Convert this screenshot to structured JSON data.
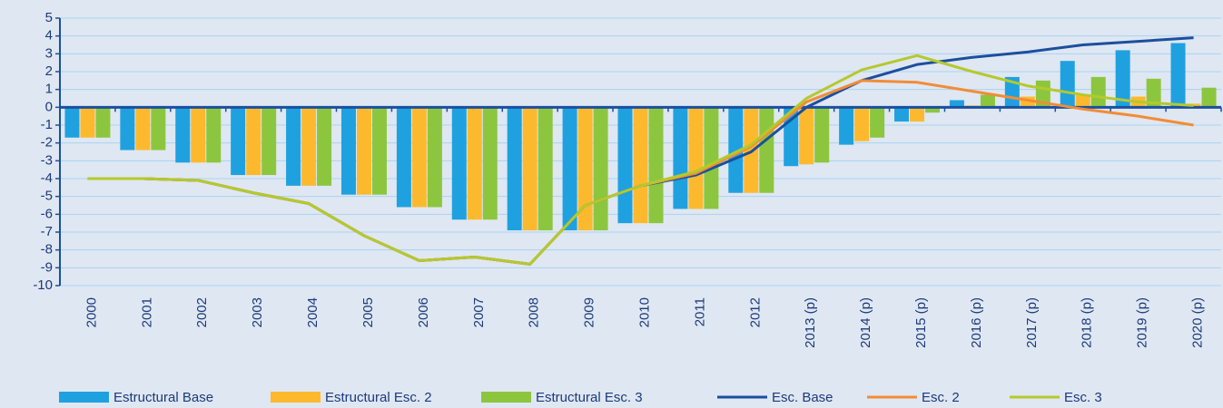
{
  "chart_data": {
    "type": "combo",
    "categories": [
      "2000",
      "2001",
      "2002",
      "2003",
      "2004",
      "2005",
      "2006",
      "2007",
      "2008",
      "2009",
      "2010",
      "2011",
      "2012",
      "2013 (p)",
      "2014 (p)",
      "2015 (p)",
      "2016 (p)",
      "2017 (p)",
      "2018 (p)",
      "2019 (p)",
      "2020 (p)"
    ],
    "ylim": [
      -10,
      5
    ],
    "yticks": [
      -10,
      -9,
      -8,
      -7,
      -6,
      -5,
      -4,
      -3,
      -2,
      -1,
      0,
      1,
      2,
      3,
      4,
      5
    ],
    "grid": true,
    "legend": "bottom",
    "series": [
      {
        "name": "Estructural Base",
        "type": "bar",
        "color": "#1fa1e0",
        "values": [
          -1.7,
          -2.4,
          -3.1,
          -3.8,
          -4.4,
          -4.9,
          -5.6,
          -6.3,
          -6.9,
          -6.9,
          -6.5,
          -5.7,
          -4.8,
          -3.3,
          -2.1,
          -0.8,
          0.4,
          1.7,
          2.6,
          3.2,
          3.6
        ]
      },
      {
        "name": "Estructural Esc. 2",
        "type": "bar",
        "color": "#fdb92e",
        "values": [
          -1.7,
          -2.4,
          -3.1,
          -3.8,
          -4.4,
          -4.9,
          -5.6,
          -6.3,
          -6.9,
          -6.9,
          -6.5,
          -5.7,
          -4.8,
          -3.2,
          -1.9,
          -0.8,
          0.1,
          0.6,
          0.7,
          0.6,
          0.2
        ]
      },
      {
        "name": "Estructural Esc. 3",
        "type": "bar",
        "color": "#8cc63f",
        "values": [
          -1.7,
          -2.4,
          -3.1,
          -3.8,
          -4.4,
          -4.9,
          -5.6,
          -6.3,
          -6.9,
          -6.9,
          -6.5,
          -5.7,
          -4.8,
          -3.1,
          -1.7,
          -0.3,
          0.7,
          1.5,
          1.7,
          1.6,
          1.1
        ]
      },
      {
        "name": "Esc. Base",
        "type": "line",
        "color": "#1b4f9e",
        "values": [
          -4.0,
          -4.0,
          -4.1,
          -4.8,
          -5.4,
          -7.2,
          -8.6,
          -8.4,
          -8.8,
          -5.5,
          -4.4,
          -3.8,
          -2.5,
          0.0,
          1.5,
          2.4,
          2.8,
          3.1,
          3.5,
          3.7,
          3.9
        ]
      },
      {
        "name": "Esc. 2",
        "type": "line",
        "color": "#f28c36",
        "values": [
          -4.0,
          -4.0,
          -4.1,
          -4.8,
          -5.4,
          -7.2,
          -8.6,
          -8.4,
          -8.8,
          -5.5,
          -4.4,
          -3.7,
          -2.2,
          0.3,
          1.5,
          1.4,
          0.9,
          0.4,
          -0.1,
          -0.5,
          -1.0
        ]
      },
      {
        "name": "Esc. 3",
        "type": "line",
        "color": "#b5c92b",
        "values": [
          -4.0,
          -4.0,
          -4.1,
          -4.8,
          -5.4,
          -7.2,
          -8.6,
          -8.4,
          -8.8,
          -5.5,
          -4.4,
          -3.6,
          -2.1,
          0.5,
          2.1,
          2.9,
          2.0,
          1.2,
          0.7,
          0.3,
          0.1
        ]
      }
    ]
  }
}
